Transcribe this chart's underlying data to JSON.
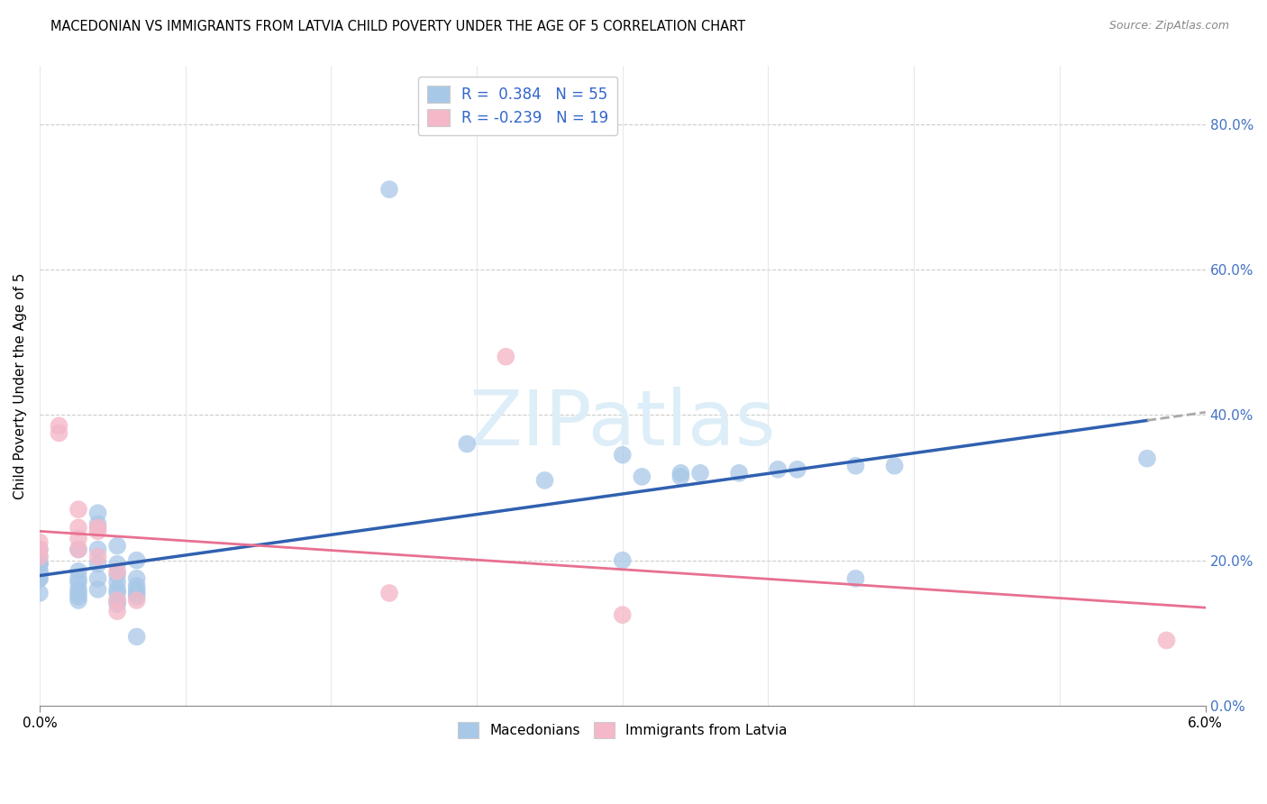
{
  "title": "MACEDONIAN VS IMMIGRANTS FROM LATVIA CHILD POVERTY UNDER THE AGE OF 5 CORRELATION CHART",
  "source": "Source: ZipAtlas.com",
  "ylabel": "Child Poverty Under the Age of 5",
  "ylabel_right_ticks": [
    "0.0%",
    "20.0%",
    "40.0%",
    "60.0%",
    "80.0%"
  ],
  "ylabel_right_vals": [
    0.0,
    0.2,
    0.4,
    0.6,
    0.8
  ],
  "legend_bottom": [
    "Macedonians",
    "Immigrants from Latvia"
  ],
  "blue_color": "#a8c8e8",
  "pink_color": "#f4b8c8",
  "blue_line_color": "#3060b0",
  "pink_line_color": "#e87090",
  "gray_dash_color": "#aaaaaa",
  "xlim": [
    0.0,
    0.06
  ],
  "ylim": [
    0.0,
    0.88
  ],
  "macedonian_points": [
    [
      0.0,
      0.205
    ],
    [
      0.0,
      0.215
    ],
    [
      0.0,
      0.195
    ],
    [
      0.0,
      0.195
    ],
    [
      0.0,
      0.185
    ],
    [
      0.0,
      0.195
    ],
    [
      0.0,
      0.175
    ],
    [
      0.0,
      0.185
    ],
    [
      0.0,
      0.175
    ],
    [
      0.0,
      0.155
    ],
    [
      0.002,
      0.215
    ],
    [
      0.002,
      0.185
    ],
    [
      0.002,
      0.155
    ],
    [
      0.002,
      0.17
    ],
    [
      0.002,
      0.175
    ],
    [
      0.002,
      0.16
    ],
    [
      0.002,
      0.145
    ],
    [
      0.002,
      0.15
    ],
    [
      0.003,
      0.265
    ],
    [
      0.003,
      0.25
    ],
    [
      0.003,
      0.215
    ],
    [
      0.003,
      0.195
    ],
    [
      0.003,
      0.175
    ],
    [
      0.003,
      0.16
    ],
    [
      0.004,
      0.22
    ],
    [
      0.004,
      0.195
    ],
    [
      0.004,
      0.18
    ],
    [
      0.004,
      0.17
    ],
    [
      0.004,
      0.16
    ],
    [
      0.004,
      0.155
    ],
    [
      0.004,
      0.145
    ],
    [
      0.004,
      0.14
    ],
    [
      0.005,
      0.2
    ],
    [
      0.005,
      0.175
    ],
    [
      0.005,
      0.165
    ],
    [
      0.005,
      0.16
    ],
    [
      0.005,
      0.155
    ],
    [
      0.005,
      0.15
    ],
    [
      0.005,
      0.095
    ],
    [
      0.018,
      0.71
    ],
    [
      0.022,
      0.36
    ],
    [
      0.026,
      0.31
    ],
    [
      0.03,
      0.345
    ],
    [
      0.03,
      0.2
    ],
    [
      0.031,
      0.315
    ],
    [
      0.033,
      0.315
    ],
    [
      0.033,
      0.32
    ],
    [
      0.034,
      0.32
    ],
    [
      0.036,
      0.32
    ],
    [
      0.038,
      0.325
    ],
    [
      0.039,
      0.325
    ],
    [
      0.042,
      0.33
    ],
    [
      0.042,
      0.175
    ],
    [
      0.044,
      0.33
    ],
    [
      0.057,
      0.34
    ]
  ],
  "latvian_points": [
    [
      0.0,
      0.225
    ],
    [
      0.0,
      0.215
    ],
    [
      0.0,
      0.205
    ],
    [
      0.001,
      0.385
    ],
    [
      0.001,
      0.375
    ],
    [
      0.002,
      0.27
    ],
    [
      0.002,
      0.245
    ],
    [
      0.002,
      0.23
    ],
    [
      0.002,
      0.215
    ],
    [
      0.003,
      0.245
    ],
    [
      0.003,
      0.24
    ],
    [
      0.003,
      0.205
    ],
    [
      0.004,
      0.185
    ],
    [
      0.004,
      0.145
    ],
    [
      0.004,
      0.13
    ],
    [
      0.005,
      0.145
    ],
    [
      0.018,
      0.155
    ],
    [
      0.024,
      0.48
    ],
    [
      0.03,
      0.125
    ],
    [
      0.058,
      0.09
    ]
  ]
}
